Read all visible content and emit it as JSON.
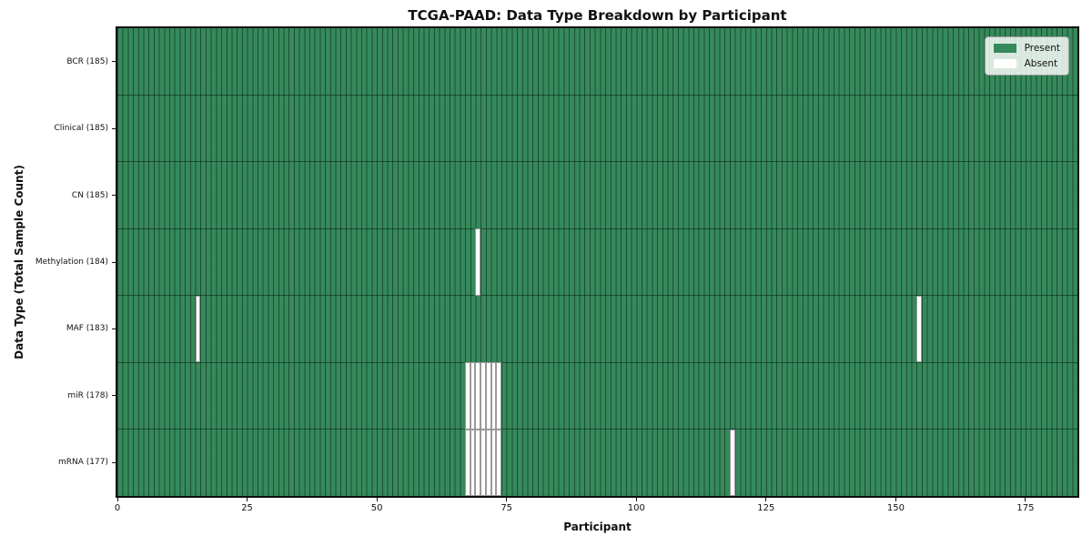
{
  "chart_data": {
    "type": "heatmap",
    "title": "TCGA-PAAD: Data Type Breakdown by Participant",
    "xlabel": "Participant",
    "ylabel": "Data Type (Total Sample Count)",
    "xlim": [
      0,
      185
    ],
    "x_ticks": [
      0,
      25,
      50,
      75,
      100,
      125,
      150,
      175
    ],
    "n_participants": 185,
    "rows": [
      {
        "label": "BCR (185)",
        "data_type": "BCR",
        "present_count": 185,
        "absent_participants": []
      },
      {
        "label": "Clinical (185)",
        "data_type": "Clinical",
        "present_count": 185,
        "absent_participants": []
      },
      {
        "label": "CN (185)",
        "data_type": "CN",
        "present_count": 185,
        "absent_participants": []
      },
      {
        "label": "Methylation (184)",
        "data_type": "Methylation",
        "present_count": 184,
        "absent_participants": [
          69
        ]
      },
      {
        "label": "MAF (183)",
        "data_type": "MAF",
        "present_count": 183,
        "absent_participants": [
          15,
          154
        ]
      },
      {
        "label": "miR (178)",
        "data_type": "miR",
        "present_count": 178,
        "absent_participants": [
          67,
          68,
          69,
          70,
          71,
          72,
          73
        ]
      },
      {
        "label": "mRNA (177)",
        "data_type": "mRNA",
        "present_count": 177,
        "absent_participants": [
          67,
          68,
          69,
          70,
          71,
          72,
          73,
          118
        ]
      }
    ],
    "legend": [
      {
        "label": "Present",
        "color": "#36895b"
      },
      {
        "label": "Absent",
        "color": "#ffffff"
      }
    ],
    "legend_position": "upper right",
    "colors": {
      "present": "#36895b",
      "absent": "#ffffff",
      "cell_edge": "rgba(5,30,18,0.55)",
      "absent_cell_edge": "#9a9a9a",
      "spine": "#0c0c0c",
      "tick": "#111111"
    },
    "grid": "per-cell edges, no background grid"
  }
}
